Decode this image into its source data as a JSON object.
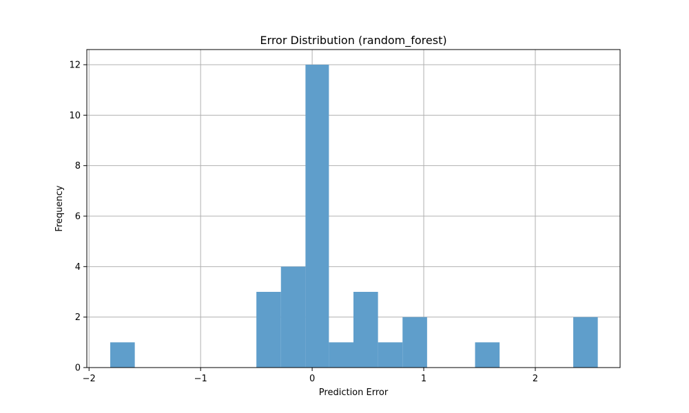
{
  "chart_data": {
    "type": "bar",
    "subtype": "histogram",
    "title": "Error Distribution (random_forest)",
    "xlabel": "Prediction Error",
    "ylabel": "Frequency",
    "xlim": [
      -2.02,
      2.76
    ],
    "ylim": [
      0,
      12.6
    ],
    "xticks": [
      -2,
      -1,
      0,
      1,
      2
    ],
    "xtick_labels": [
      "−2",
      "−1",
      "0",
      "1",
      "2"
    ],
    "yticks": [
      0,
      2,
      4,
      6,
      8,
      10,
      12
    ],
    "grid": true,
    "bar_color": "#5f9ecb",
    "bins": [
      {
        "x0": -1.81,
        "x1": -1.59,
        "count": 1
      },
      {
        "x0": -1.59,
        "x1": -1.37,
        "count": 0
      },
      {
        "x0": -1.37,
        "x1": -1.16,
        "count": 0
      },
      {
        "x0": -1.16,
        "x1": -0.94,
        "count": 0
      },
      {
        "x0": -0.94,
        "x1": -0.72,
        "count": 0
      },
      {
        "x0": -0.72,
        "x1": -0.5,
        "count": 0
      },
      {
        "x0": -0.5,
        "x1": -0.28,
        "count": 3
      },
      {
        "x0": -0.28,
        "x1": -0.06,
        "count": 4
      },
      {
        "x0": -0.06,
        "x1": 0.15,
        "count": 12
      },
      {
        "x0": 0.15,
        "x1": 0.37,
        "count": 1
      },
      {
        "x0": 0.37,
        "x1": 0.59,
        "count": 3
      },
      {
        "x0": 0.59,
        "x1": 0.81,
        "count": 1
      },
      {
        "x0": 0.81,
        "x1": 1.03,
        "count": 2
      },
      {
        "x0": 1.03,
        "x1": 1.25,
        "count": 0
      },
      {
        "x0": 1.25,
        "x1": 1.46,
        "count": 0
      },
      {
        "x0": 1.46,
        "x1": 1.68,
        "count": 1
      },
      {
        "x0": 1.68,
        "x1": 1.9,
        "count": 0
      },
      {
        "x0": 1.9,
        "x1": 2.12,
        "count": 0
      },
      {
        "x0": 2.12,
        "x1": 2.34,
        "count": 0
      },
      {
        "x0": 2.34,
        "x1": 2.56,
        "count": 2
      }
    ]
  }
}
